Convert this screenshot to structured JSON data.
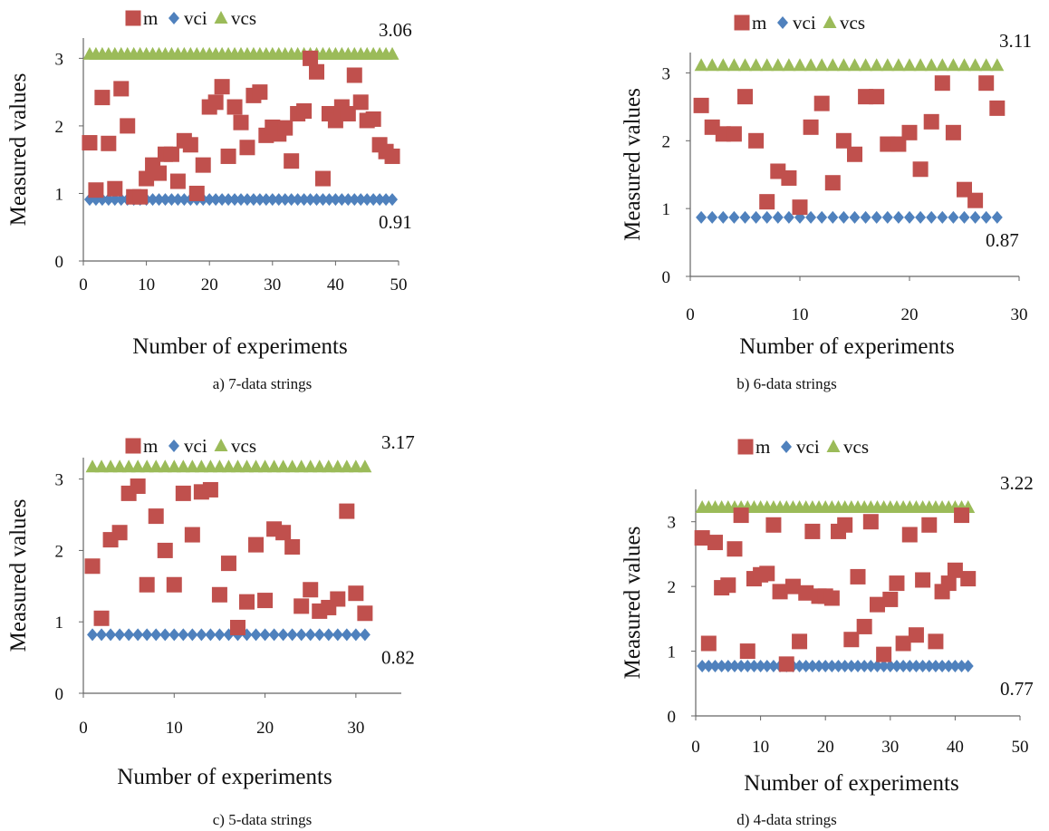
{
  "chart_data": [
    {
      "type": "scatter",
      "caption": "a) 7-data strings",
      "xlabel": "Number of experiments",
      "ylabel": "Measured values",
      "xlim": [
        0,
        50
      ],
      "ylim": [
        0,
        3.3
      ],
      "xticks": [
        0,
        10,
        20,
        30,
        40,
        50
      ],
      "yticks": [
        0,
        1,
        2,
        3
      ],
      "grid": false,
      "legend_position": "top",
      "series": [
        {
          "name": "m",
          "color": "#c0504d",
          "marker": "square",
          "x": [
            1,
            2,
            3,
            4,
            5,
            6,
            7,
            8,
            9,
            10,
            11,
            12,
            13,
            14,
            15,
            16,
            17,
            18,
            19,
            20,
            21,
            22,
            23,
            24,
            25,
            26,
            27,
            28,
            29,
            30,
            31,
            32,
            33,
            34,
            35,
            36,
            37,
            38,
            39,
            40,
            41,
            42,
            43,
            44,
            45,
            46,
            47,
            48,
            49
          ],
          "y": [
            1.75,
            1.05,
            2.42,
            1.74,
            1.07,
            2.55,
            2.0,
            0.95,
            0.95,
            1.22,
            1.42,
            1.3,
            1.58,
            1.58,
            1.18,
            1.78,
            1.72,
            1.0,
            1.42,
            2.28,
            2.35,
            2.58,
            1.55,
            2.28,
            2.05,
            1.68,
            2.45,
            2.5,
            1.86,
            1.98,
            1.88,
            1.97,
            1.48,
            2.18,
            2.22,
            3.0,
            2.8,
            1.22,
            2.18,
            2.08,
            2.28,
            2.18,
            2.75,
            2.35,
            2.08,
            2.1,
            1.72,
            1.62,
            1.55
          ]
        },
        {
          "name": "vci",
          "color": "#4f81bd",
          "marker": "diamond",
          "n": 49,
          "value": 0.91
        },
        {
          "name": "vcs",
          "color": "#9bbb59",
          "marker": "triangle",
          "n": 49,
          "value": 3.06
        }
      ],
      "annotations": [
        {
          "text": "3.06",
          "y": 3.06
        },
        {
          "text": "0.91",
          "y": 0.91
        }
      ]
    },
    {
      "type": "scatter",
      "caption": "b) 6-data strings",
      "xlabel": "Number of experiments",
      "ylabel": "Measured values",
      "xlim": [
        0,
        30
      ],
      "ylim": [
        0,
        3.3
      ],
      "xticks": [
        0,
        10,
        20,
        30
      ],
      "yticks": [
        0,
        1,
        2,
        3
      ],
      "grid": false,
      "legend_position": "top",
      "series": [
        {
          "name": "m",
          "color": "#c0504d",
          "marker": "square",
          "x": [
            1,
            2,
            3,
            4,
            5,
            6,
            7,
            8,
            9,
            10,
            11,
            12,
            13,
            14,
            15,
            16,
            17,
            18,
            19,
            20,
            21,
            22,
            23,
            24,
            25,
            26,
            27,
            28
          ],
          "y": [
            2.52,
            2.2,
            2.1,
            2.1,
            2.65,
            2.0,
            1.1,
            1.55,
            1.45,
            1.02,
            2.2,
            2.55,
            1.38,
            2.0,
            1.8,
            2.65,
            2.65,
            1.95,
            1.95,
            2.12,
            1.58,
            2.28,
            2.85,
            2.12,
            1.28,
            1.12,
            2.85,
            2.48
          ]
        },
        {
          "name": "vci",
          "color": "#4f81bd",
          "marker": "diamond",
          "n": 28,
          "value": 0.87
        },
        {
          "name": "vcs",
          "color": "#9bbb59",
          "marker": "triangle",
          "n": 28,
          "value": 3.11
        }
      ],
      "annotations": [
        {
          "text": "3.11",
          "y": 3.11
        },
        {
          "text": "0.87",
          "y": 0.87
        }
      ]
    },
    {
      "type": "scatter",
      "caption": "c) 5-data strings",
      "xlabel": "Number of experiments",
      "ylabel": "Measured values",
      "xlim": [
        0,
        35
      ],
      "ylim": [
        0,
        3.3
      ],
      "xticks": [
        0,
        10,
        20,
        30
      ],
      "yticks": [
        0,
        1,
        2,
        3
      ],
      "grid": false,
      "legend_position": "top",
      "series": [
        {
          "name": "m",
          "color": "#c0504d",
          "marker": "square",
          "x": [
            1,
            2,
            3,
            4,
            5,
            6,
            7,
            8,
            9,
            10,
            11,
            12,
            13,
            14,
            15,
            16,
            17,
            18,
            19,
            20,
            21,
            22,
            23,
            24,
            25,
            26,
            27,
            28,
            29,
            30,
            31
          ],
          "y": [
            1.78,
            1.05,
            2.15,
            2.25,
            2.8,
            2.9,
            1.52,
            2.48,
            2.0,
            1.52,
            2.8,
            2.22,
            2.82,
            2.85,
            1.38,
            1.82,
            0.92,
            1.28,
            2.08,
            1.3,
            2.3,
            2.25,
            2.05,
            1.22,
            1.45,
            1.15,
            1.2,
            1.32,
            2.55,
            1.4,
            1.12
          ]
        },
        {
          "name": "vci",
          "color": "#4f81bd",
          "marker": "diamond",
          "n": 31,
          "value": 0.82
        },
        {
          "name": "vcs",
          "color": "#9bbb59",
          "marker": "triangle",
          "n": 31,
          "value": 3.17
        }
      ],
      "annotations": [
        {
          "text": "3.17",
          "y": 3.17
        },
        {
          "text": "0.82",
          "y": 0.82
        }
      ]
    },
    {
      "type": "scatter",
      "caption": "d) 4-data strings",
      "xlabel": "Number of experiments",
      "ylabel": "Measured values",
      "xlim": [
        0,
        50
      ],
      "ylim": [
        0,
        3.5
      ],
      "xticks": [
        0,
        10,
        20,
        30,
        40,
        50
      ],
      "yticks": [
        0,
        1,
        2,
        3
      ],
      "grid": false,
      "legend_position": "top",
      "series": [
        {
          "name": "m",
          "color": "#c0504d",
          "marker": "square",
          "x": [
            1,
            2,
            3,
            4,
            5,
            6,
            7,
            8,
            9,
            10,
            11,
            12,
            13,
            14,
            15,
            16,
            17,
            18,
            19,
            20,
            21,
            22,
            23,
            24,
            25,
            26,
            27,
            28,
            29,
            30,
            31,
            32,
            33,
            34,
            35,
            36,
            37,
            38,
            39,
            40,
            41,
            42
          ],
          "y": [
            2.75,
            1.12,
            2.68,
            1.98,
            2.02,
            2.58,
            3.1,
            1.0,
            2.12,
            2.18,
            2.2,
            2.95,
            1.92,
            0.8,
            2.0,
            1.15,
            1.9,
            2.85,
            1.85,
            1.85,
            1.82,
            2.85,
            2.95,
            1.18,
            2.15,
            1.38,
            3.0,
            1.72,
            0.95,
            1.8,
            2.05,
            1.12,
            2.8,
            1.25,
            2.1,
            2.95,
            1.15,
            1.92,
            2.05,
            2.25,
            3.1,
            2.12
          ]
        },
        {
          "name": "vci",
          "color": "#4f81bd",
          "marker": "diamond",
          "n": 42,
          "value": 0.77
        },
        {
          "name": "vcs",
          "color": "#9bbb59",
          "marker": "triangle",
          "n": 42,
          "value": 3.22
        }
      ],
      "annotations": [
        {
          "text": "3.22",
          "y": 3.22
        },
        {
          "text": "0.77",
          "y": 0.77
        }
      ]
    }
  ]
}
